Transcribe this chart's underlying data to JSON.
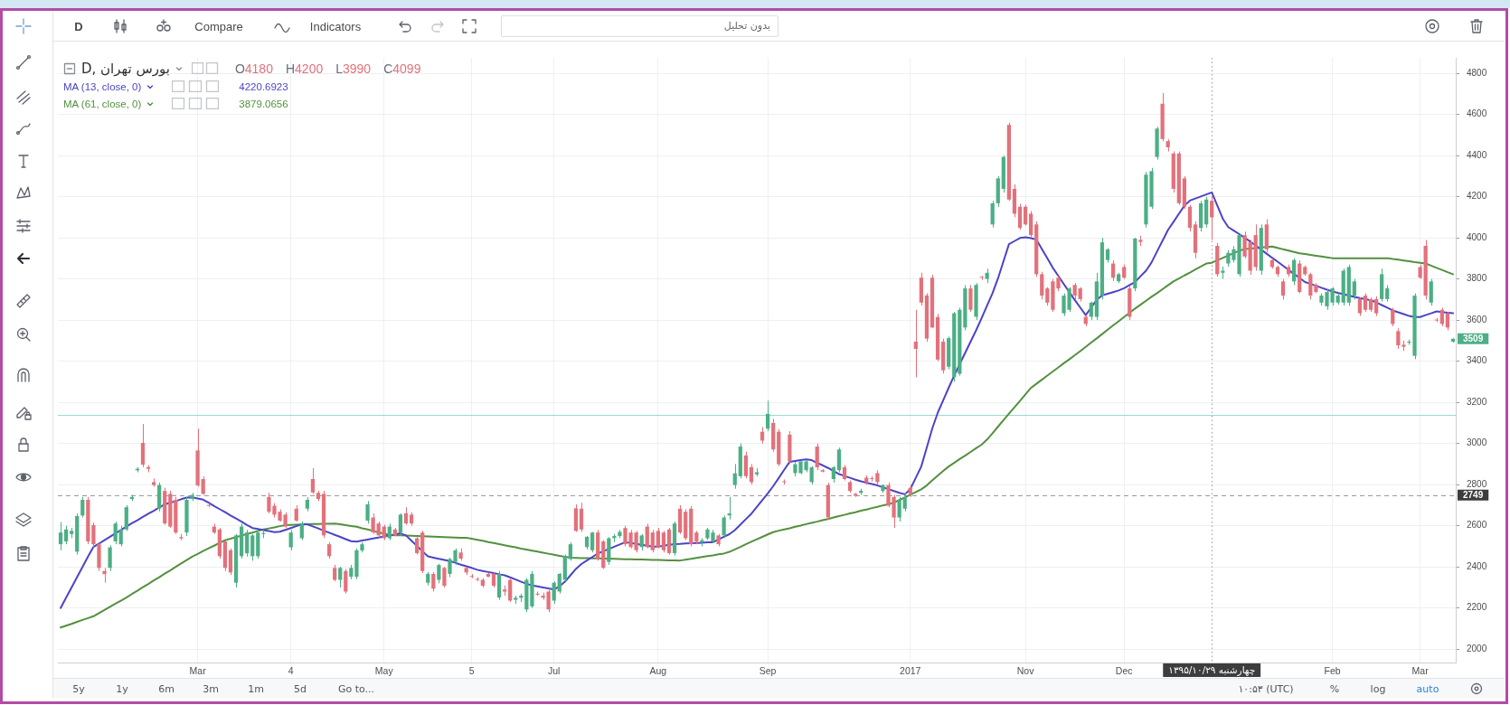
{
  "chart_data": {
    "type": "candlestick",
    "title": "D, بورس تهران",
    "categories": [
      null,
      null,
      null,
      null,
      null,
      null,
      null,
      null,
      null,
      null,
      null,
      null,
      null,
      null,
      null,
      null,
      null,
      null,
      null,
      null,
      null,
      null,
      null,
      null,
      null,
      "Mar",
      null,
      null,
      null,
      null,
      null,
      null,
      null,
      null,
      null,
      null,
      null,
      null,
      null,
      null,
      null,
      null,
      "4",
      null,
      null,
      null,
      null,
      null,
      null,
      null,
      null,
      null,
      null,
      null,
      null,
      null,
      null,
      null,
      null,
      "May",
      null,
      null,
      null,
      null,
      null,
      null,
      null,
      null,
      null,
      null,
      null,
      null,
      null,
      null,
      null,
      "5",
      null,
      null,
      null,
      null,
      null,
      null,
      null,
      null,
      null,
      null,
      null,
      null,
      null,
      null,
      "Jul",
      null,
      null,
      null,
      null,
      null,
      null,
      null,
      null,
      null,
      null,
      null,
      null,
      null,
      null,
      null,
      null,
      null,
      null,
      "Aug",
      null,
      null,
      null,
      null,
      null,
      null,
      null,
      null,
      null,
      null,
      null,
      null,
      null,
      null,
      null,
      null,
      null,
      null,
      null,
      "Sep",
      null,
      null,
      null,
      null,
      null,
      null,
      null,
      null,
      null,
      null,
      null,
      null,
      null,
      null,
      null,
      null,
      null,
      null,
      null,
      null,
      null,
      null,
      null,
      null,
      null,
      "2017",
      null,
      null,
      null,
      null,
      null,
      null,
      null,
      null,
      null,
      null,
      null,
      null,
      null,
      null,
      null,
      null,
      null,
      null,
      null,
      null,
      "Nov",
      null,
      null,
      null,
      null,
      null,
      null,
      null,
      null,
      null,
      null,
      null,
      null,
      null,
      null,
      null,
      null,
      null,
      "Dec",
      null,
      null,
      null,
      null,
      null,
      null,
      null,
      null,
      null,
      null,
      null,
      null,
      null,
      null,
      null,
      "چهارشنبه ۱۳۹۵/۱۰/۲۹",
      null,
      null,
      null,
      null,
      null,
      null,
      null,
      null,
      null,
      null,
      null,
      null,
      null,
      null,
      null,
      null,
      null,
      null,
      null,
      null,
      null,
      "Feb",
      null,
      null,
      null,
      null,
      null,
      null,
      null,
      null,
      null,
      null,
      null,
      null,
      null,
      null,
      null,
      "Mar",
      null,
      null,
      null,
      null,
      null,
      null
    ],
    "ohlc": [
      [
        2510,
        2618,
        2481,
        2567
      ],
      [
        2524,
        2600,
        2510,
        2582
      ],
      [
        2560,
        2590,
        2540,
        2575
      ],
      [
        2474,
        2660,
        2460,
        2647
      ],
      [
        2650,
        2740,
        2640,
        2726
      ],
      [
        2726,
        2740,
        2510,
        2524
      ],
      [
        2603,
        2615,
        2495,
        2510
      ],
      [
        2510,
        2520,
        2380,
        2395
      ],
      [
        2380,
        2395,
        2323,
        2365
      ],
      [
        2395,
        2505,
        2380,
        2495
      ],
      [
        2524,
        2620,
        2510,
        2611
      ],
      [
        2510,
        2600,
        2500,
        2582
      ],
      [
        2582,
        2700,
        2575,
        2690
      ],
      [
        2730,
        2750,
        2720,
        2740
      ],
      [
        2870,
        2885,
        2860,
        2877
      ],
      [
        3003,
        3095,
        2885,
        2897
      ],
      [
        2885,
        2895,
        2860,
        2877
      ],
      [
        2812,
        2830,
        2790,
        2798
      ],
      [
        2683,
        2810,
        2670,
        2798
      ],
      [
        2769,
        2785,
        2605,
        2611
      ],
      [
        2755,
        2770,
        2590,
        2596
      ],
      [
        2726,
        2740,
        2560,
        2567
      ],
      [
        2545,
        2560,
        2530,
        2539
      ],
      [
        2567,
        2740,
        2550,
        2726
      ],
      [
        2730,
        2760,
        2720,
        2750
      ],
      [
        2966,
        3072,
        2790,
        2796
      ],
      [
        2827,
        2840,
        2750,
        2755
      ],
      [
        2700,
        2710,
        2690,
        2697
      ],
      [
        2596,
        2610,
        2560,
        2567
      ],
      [
        2582,
        2590,
        2440,
        2452
      ],
      [
        2524,
        2530,
        2380,
        2395
      ],
      [
        2481,
        2490,
        2360,
        2373
      ],
      [
        2323,
        2560,
        2300,
        2553
      ],
      [
        2452,
        2610,
        2440,
        2596
      ],
      [
        2466,
        2580,
        2450,
        2567
      ],
      [
        2452,
        2560,
        2430,
        2553
      ],
      [
        2452,
        2580,
        2440,
        2567
      ],
      [
        2560,
        2580,
        2540,
        2565
      ],
      [
        2740,
        2760,
        2660,
        2668
      ],
      [
        2697,
        2710,
        2640,
        2654
      ],
      [
        2668,
        2680,
        2620,
        2625
      ],
      [
        2654,
        2665,
        2590,
        2596
      ],
      [
        2495,
        2580,
        2480,
        2567
      ],
      [
        2683,
        2700,
        2620,
        2625
      ],
      [
        2539,
        2620,
        2530,
        2611
      ],
      [
        2683,
        2740,
        2670,
        2726
      ],
      [
        2827,
        2880,
        2755,
        2762
      ],
      [
        2760,
        2770,
        2720,
        2730
      ],
      [
        2755,
        2770,
        2540,
        2553
      ],
      [
        2510,
        2520,
        2440,
        2452
      ],
      [
        2395,
        2410,
        2330,
        2337
      ],
      [
        2337,
        2400,
        2300,
        2395
      ],
      [
        2380,
        2390,
        2270,
        2280
      ],
      [
        2352,
        2410,
        2340,
        2395
      ],
      [
        2352,
        2490,
        2340,
        2481
      ],
      [
        2480,
        2520,
        2470,
        2510
      ],
      [
        2625,
        2720,
        2610,
        2704
      ],
      [
        2640,
        2660,
        2560,
        2567
      ],
      [
        2611,
        2620,
        2540,
        2553
      ],
      [
        2596,
        2605,
        2530,
        2539
      ],
      [
        2539,
        2610,
        2530,
        2596
      ],
      [
        2582,
        2590,
        2550,
        2553
      ],
      [
        2567,
        2660,
        2550,
        2654
      ],
      [
        2661,
        2690,
        2605,
        2611
      ],
      [
        2654,
        2665,
        2600,
        2611
      ],
      [
        2539,
        2550,
        2460,
        2467
      ],
      [
        2567,
        2575,
        2370,
        2380
      ],
      [
        2323,
        2375,
        2310,
        2366
      ],
      [
        2366,
        2375,
        2280,
        2294
      ],
      [
        2337,
        2415,
        2320,
        2409
      ],
      [
        2395,
        2400,
        2300,
        2308
      ],
      [
        2366,
        2445,
        2350,
        2438
      ],
      [
        2424,
        2490,
        2410,
        2481
      ],
      [
        2470,
        2490,
        2430,
        2440
      ],
      [
        2395,
        2400,
        2360,
        2373
      ],
      [
        2355,
        2365,
        2345,
        2351
      ],
      [
        2340,
        2350,
        2330,
        2337
      ],
      [
        2337,
        2345,
        2300,
        2308
      ],
      [
        2366,
        2370,
        2350,
        2352
      ],
      [
        2366,
        2375,
        2300,
        2308
      ],
      [
        2251,
        2380,
        2240,
        2366
      ],
      [
        2290,
        2310,
        2260,
        2280
      ],
      [
        2337,
        2345,
        2230,
        2236
      ],
      [
        2240,
        2260,
        2220,
        2250
      ],
      [
        2250,
        2270,
        2230,
        2260
      ],
      [
        2193,
        2345,
        2180,
        2337
      ],
      [
        2208,
        2380,
        2200,
        2366
      ],
      [
        2270,
        2280,
        2260,
        2265
      ],
      [
        2260,
        2275,
        2240,
        2250
      ],
      [
        2280,
        2295,
        2180,
        2193
      ],
      [
        2236,
        2330,
        2220,
        2323
      ],
      [
        2280,
        2370,
        2270,
        2366
      ],
      [
        2337,
        2460,
        2330,
        2452
      ],
      [
        2438,
        2520,
        2430,
        2510
      ],
      [
        2685,
        2704,
        2570,
        2575
      ],
      [
        2683,
        2712,
        2570,
        2582
      ],
      [
        2496,
        2550,
        2485,
        2546
      ],
      [
        2481,
        2570,
        2470,
        2567
      ],
      [
        2567,
        2580,
        2430,
        2438
      ],
      [
        2524,
        2530,
        2390,
        2395
      ],
      [
        2424,
        2545,
        2410,
        2539
      ],
      [
        2540,
        2560,
        2520,
        2550
      ],
      [
        2550,
        2580,
        2540,
        2570
      ],
      [
        2589,
        2600,
        2500,
        2510
      ],
      [
        2567,
        2580,
        2490,
        2496
      ],
      [
        2567,
        2575,
        2470,
        2481
      ],
      [
        2496,
        2560,
        2480,
        2553
      ],
      [
        2596,
        2610,
        2490,
        2496
      ],
      [
        2567,
        2580,
        2470,
        2481
      ],
      [
        2575,
        2590,
        2490,
        2496
      ],
      [
        2567,
        2575,
        2470,
        2481
      ],
      [
        2582,
        2590,
        2460,
        2467
      ],
      [
        2467,
        2620,
        2455,
        2611
      ],
      [
        2683,
        2700,
        2560,
        2567
      ],
      [
        2668,
        2680,
        2530,
        2539
      ],
      [
        2683,
        2695,
        2500,
        2510
      ],
      [
        2567,
        2575,
        2510,
        2524
      ],
      [
        2520,
        2540,
        2500,
        2530
      ],
      [
        2539,
        2590,
        2530,
        2582
      ],
      [
        2524,
        2580,
        2515,
        2567
      ],
      [
        2553,
        2560,
        2500,
        2510
      ],
      [
        2553,
        2650,
        2540,
        2640
      ],
      [
        2650,
        2740,
        2630,
        2660
      ],
      [
        2798,
        2900,
        2780,
        2855
      ],
      [
        2841,
        3000,
        2830,
        2985
      ],
      [
        2942,
        2960,
        2830,
        2841
      ],
      [
        2885,
        2900,
        2800,
        2812
      ],
      [
        2850,
        2880,
        2840,
        2860
      ],
      [
        3057,
        3080,
        3000,
        3014
      ],
      [
        3072,
        3208,
        3060,
        3144
      ],
      [
        3100,
        3120,
        2960,
        2971
      ],
      [
        3057,
        3070,
        2890,
        2899
      ],
      [
        2815,
        2825,
        2800,
        2812
      ],
      [
        3043,
        3060,
        2900,
        2913
      ],
      [
        2856,
        2910,
        2840,
        2899
      ],
      [
        2856,
        2920,
        2850,
        2913
      ],
      [
        2870,
        2920,
        2860,
        2913
      ],
      [
        2812,
        2890,
        2800,
        2884
      ],
      [
        2985,
        3000,
        2870,
        2884
      ],
      [
        2870,
        2875,
        2860,
        2863
      ],
      [
        2798,
        2810,
        2630,
        2640
      ],
      [
        2827,
        2890,
        2810,
        2884
      ],
      [
        2870,
        2980,
        2860,
        2971
      ],
      [
        2884,
        2895,
        2820,
        2827
      ],
      [
        2812,
        2820,
        2760,
        2769
      ],
      [
        2755,
        2760,
        2740,
        2746
      ],
      [
        2760,
        2780,
        2750,
        2770
      ],
      [
        2834,
        2845,
        2800,
        2812
      ],
      [
        2830,
        2840,
        2815,
        2827
      ],
      [
        2856,
        2870,
        2800,
        2812
      ],
      [
        2769,
        2800,
        2760,
        2798
      ],
      [
        2798,
        2810,
        2690,
        2697
      ],
      [
        2740,
        2750,
        2589,
        2640
      ],
      [
        2640,
        2740,
        2620,
        2726
      ],
      [
        2683,
        2760,
        2670,
        2740
      ],
      [
        2784,
        2800,
        2740,
        2755
      ],
      [
        3495,
        3650,
        3322,
        3460
      ],
      [
        3806,
        3830,
        3670,
        3685
      ],
      [
        3720,
        3730,
        3495,
        3510
      ],
      [
        3806,
        3820,
        3560,
        3564
      ],
      [
        3615,
        3630,
        3400,
        3408
      ],
      [
        3495,
        3510,
        3340,
        3356
      ],
      [
        3373,
        3520,
        3360,
        3512
      ],
      [
        3322,
        3640,
        3300,
        3633
      ],
      [
        3339,
        3660,
        3330,
        3650
      ],
      [
        3564,
        3770,
        3550,
        3754
      ],
      [
        3754,
        3770,
        3640,
        3650
      ],
      [
        3616,
        3780,
        3600,
        3771
      ],
      [
        3810,
        3815,
        3795,
        3806
      ],
      [
        3800,
        3850,
        3780,
        3830
      ],
      [
        4065,
        4180,
        4050,
        4168
      ],
      [
        4168,
        4300,
        4150,
        4289
      ],
      [
        4238,
        4400,
        4220,
        4393
      ],
      [
        4549,
        4560,
        4180,
        4186
      ],
      [
        4238,
        4260,
        4100,
        4117
      ],
      [
        4151,
        4165,
        4040,
        4048
      ],
      [
        4151,
        4160,
        4060,
        4065
      ],
      [
        4117,
        4130,
        4000,
        4013
      ],
      [
        4065,
        4080,
        3810,
        3823
      ],
      [
        3823,
        3835,
        3700,
        3719
      ],
      [
        3754,
        3760,
        3670,
        3685
      ],
      [
        3788,
        3800,
        3640,
        3650
      ],
      [
        3806,
        3815,
        3740,
        3754
      ],
      [
        3633,
        3730,
        3620,
        3719
      ],
      [
        3650,
        3760,
        3640,
        3754
      ],
      [
        3771,
        3780,
        3700,
        3719
      ],
      [
        3754,
        3760,
        3690,
        3702
      ],
      [
        3616,
        3625,
        3570,
        3581
      ],
      [
        3616,
        3690,
        3600,
        3685
      ],
      [
        3616,
        3830,
        3600,
        3788
      ],
      [
        3719,
        4000,
        3700,
        3978
      ],
      [
        3892,
        3950,
        3880,
        3944
      ],
      [
        3875,
        3890,
        3790,
        3806
      ],
      [
        3789,
        3830,
        3780,
        3823
      ],
      [
        3858,
        3870,
        3800,
        3806
      ],
      [
        3754,
        3765,
        3600,
        3616
      ],
      [
        3754,
        4000,
        3740,
        3996
      ],
      [
        3990,
        4010,
        3960,
        3980
      ],
      [
        4065,
        4320,
        4050,
        4307
      ],
      [
        4151,
        4340,
        4140,
        4324
      ],
      [
        4393,
        4540,
        4380,
        4531
      ],
      [
        4652,
        4704,
        4470,
        4480
      ],
      [
        4470,
        4480,
        4420,
        4440
      ],
      [
        4410,
        4420,
        4220,
        4238
      ],
      [
        4410,
        4420,
        4160,
        4168
      ],
      [
        4289,
        4300,
        4140,
        4151
      ],
      [
        4151,
        4160,
        4030,
        4048
      ],
      [
        4065,
        4080,
        3900,
        3927
      ],
      [
        4048,
        4180,
        4030,
        4168
      ],
      [
        4065,
        4200,
        4050,
        4186
      ],
      [
        4180,
        4200,
        3990,
        4099
      ],
      [
        3961,
        3975,
        3810,
        3823
      ],
      [
        3830,
        3860,
        3800,
        3840
      ],
      [
        3875,
        3940,
        3860,
        3927
      ],
      [
        3892,
        3960,
        3880,
        3944
      ],
      [
        3823,
        4020,
        3810,
        4013
      ],
      [
        4013,
        4030,
        3900,
        3909
      ],
      [
        3978,
        3990,
        3820,
        3840
      ],
      [
        4013,
        4065,
        3840,
        3858
      ],
      [
        3840,
        4065,
        3820,
        4048
      ],
      [
        4065,
        4090,
        3930,
        3944
      ],
      [
        3892,
        3900,
        3850,
        3858
      ],
      [
        3858,
        3865,
        3810,
        3823
      ],
      [
        3788,
        3800,
        3700,
        3719
      ],
      [
        3858,
        3870,
        3810,
        3823
      ],
      [
        3788,
        3900,
        3770,
        3892
      ],
      [
        3875,
        3890,
        3730,
        3737
      ],
      [
        3858,
        3865,
        3815,
        3823
      ],
      [
        3823,
        3830,
        3700,
        3719
      ],
      [
        3771,
        3780,
        3730,
        3737
      ],
      [
        3685,
        3730,
        3670,
        3719
      ],
      [
        3667,
        3750,
        3650,
        3737
      ],
      [
        3685,
        3760,
        3670,
        3754
      ],
      [
        3685,
        3730,
        3675,
        3719
      ],
      [
        3685,
        3850,
        3670,
        3840
      ],
      [
        3685,
        3870,
        3670,
        3858
      ],
      [
        3719,
        3800,
        3700,
        3788
      ],
      [
        3702,
        3710,
        3620,
        3633
      ],
      [
        3719,
        3730,
        3640,
        3650
      ],
      [
        3702,
        3710,
        3640,
        3650
      ],
      [
        3702,
        3715,
        3620,
        3633
      ],
      [
        3702,
        3850,
        3690,
        3823
      ],
      [
        3702,
        3770,
        3690,
        3754
      ],
      [
        3650,
        3660,
        3570,
        3581
      ],
      [
        3546,
        3560,
        3460,
        3477
      ],
      [
        3480,
        3500,
        3450,
        3470
      ],
      [
        3490,
        3505,
        3480,
        3495
      ],
      [
        3426,
        3730,
        3410,
        3719
      ],
      [
        3858,
        3870,
        3800,
        3806
      ],
      [
        3961,
        3990,
        3700,
        3719
      ],
      [
        3685,
        3800,
        3670,
        3788
      ],
      [
        3600,
        3610,
        3590,
        3598
      ],
      [
        3650,
        3660,
        3570,
        3581
      ],
      [
        3633,
        3640,
        3550,
        3564
      ],
      [
        3495,
        3512,
        3490,
        3509
      ]
    ],
    "colors": [
      "#4caf85",
      "#4caf85",
      "#4caf85",
      "#4caf85",
      "#4caf85",
      "#e3717b",
      "#e3717b",
      "#e3717b",
      "#e3717b",
      "#4caf85",
      "#4caf85",
      "#4caf85",
      "#4caf85",
      "#4caf85",
      "#4caf85",
      "#e3717b",
      "#e3717b",
      "#e3717b",
      "#4caf85",
      "#e3717b",
      "#e3717b",
      "#e3717b",
      "#e3717b",
      "#4caf85",
      "#4caf85",
      "#e3717b",
      "#e3717b",
      "#e3717b",
      "#e3717b",
      "#e3717b",
      "#e3717b",
      "#e3717b",
      "#4caf85",
      "#4caf85",
      "#4caf85",
      "#4caf85",
      "#4caf85",
      "#4caf85",
      "#e3717b",
      "#e3717b",
      "#e3717b",
      "#e3717b",
      "#4caf85",
      "#e3717b",
      "#4caf85",
      "#4caf85",
      "#e3717b",
      "#e3717b",
      "#e3717b",
      "#e3717b",
      "#e3717b",
      "#4caf85",
      "#e3717b",
      "#4caf85",
      "#4caf85",
      "#4caf85",
      "#4caf85",
      "#e3717b",
      "#e3717b",
      "#e3717b",
      "#4caf85",
      "#e3717b",
      "#4caf85",
      "#e3717b",
      "#e3717b",
      "#e3717b",
      "#e3717b",
      "#4caf85",
      "#e3717b",
      "#4caf85",
      "#e3717b",
      "#4caf85",
      "#4caf85",
      "#e3717b",
      "#e3717b",
      "#e3717b",
      "#e3717b",
      "#e3717b",
      "#e3717b",
      "#e3717b",
      "#4caf85",
      "#e3717b",
      "#e3717b",
      "#4caf85",
      "#4caf85",
      "#4caf85",
      "#4caf85",
      "#e3717b",
      "#e3717b",
      "#e3717b",
      "#4caf85",
      "#4caf85",
      "#4caf85",
      "#4caf85",
      "#e3717b",
      "#e3717b",
      "#4caf85",
      "#4caf85",
      "#e3717b",
      "#e3717b",
      "#4caf85",
      "#4caf85",
      "#4caf85",
      "#e3717b",
      "#e3717b",
      "#e3717b",
      "#4caf85",
      "#e3717b",
      "#e3717b",
      "#e3717b",
      "#e3717b",
      "#e3717b",
      "#4caf85",
      "#e3717b",
      "#e3717b",
      "#e3717b",
      "#e3717b",
      "#4caf85",
      "#4caf85",
      "#4caf85",
      "#e3717b",
      "#4caf85",
      "#4caf85",
      "#4caf85",
      "#4caf85",
      "#e3717b",
      "#e3717b",
      "#4caf85",
      "#e3717b",
      "#4caf85",
      "#e3717b",
      "#e3717b",
      "#e3717b",
      "#e3717b",
      "#4caf85",
      "#4caf85",
      "#4caf85",
      "#4caf85",
      "#e3717b",
      "#e3717b",
      "#e3717b",
      "#4caf85",
      "#4caf85",
      "#e3717b",
      "#e3717b",
      "#e3717b",
      "#4caf85",
      "#e3717b",
      "#e3717b",
      "#e3717b",
      "#4caf85",
      "#e3717b",
      "#e3717b",
      "#4caf85",
      "#4caf85",
      "#e3717b",
      "#e3717b",
      "#e3717b",
      "#e3717b",
      "#e3717b",
      "#e3717b",
      "#e3717b",
      "#4caf85",
      "#4caf85",
      "#4caf85",
      "#4caf85",
      "#e3717b",
      "#4caf85",
      "#e3717b",
      "#4caf85",
      "#4caf85",
      "#4caf85",
      "#4caf85",
      "#e3717b",
      "#e3717b",
      "#e3717b",
      "#e3717b",
      "#e3717b",
      "#e3717b",
      "#e3717b",
      "#e3717b",
      "#e3717b",
      "#e3717b",
      "#4caf85",
      "#4caf85",
      "#e3717b",
      "#e3717b",
      "#e3717b",
      "#4caf85",
      "#4caf85",
      "#4caf85",
      "#4caf85",
      "#e3717b",
      "#4caf85",
      "#e3717b",
      "#e3717b",
      "#4caf85",
      "#e3717b",
      "#4caf85",
      "#4caf85",
      "#4caf85",
      "#e3717b",
      "#e3717b",
      "#e3717b",
      "#e3717b",
      "#e3717b",
      "#e3717b",
      "#e3717b",
      "#4caf85",
      "#4caf85",
      "#e3717b",
      "#e3717b",
      "#4caf85",
      "#4caf85",
      "#4caf85",
      "#4caf85",
      "#e3717b",
      "#e3717b",
      "#e3717b",
      "#4caf85",
      "#e3717b",
      "#e3717b",
      "#e3717b",
      "#e3717b",
      "#e3717b",
      "#4caf85",
      "#e3717b",
      "#e3717b",
      "#e3717b",
      "#e3717b",
      "#4caf85",
      "#4caf85",
      "#4caf85",
      "#4caf85",
      "#4caf85",
      "#4caf85",
      "#4caf85",
      "#e3717b",
      "#e3717b",
      "#e3717b",
      "#e3717b",
      "#4caf85",
      "#4caf85",
      "#e3717b",
      "#e3717b",
      "#e3717b",
      "#4caf85",
      "#4caf85",
      "#e3717b",
      "#e3717b",
      "#4caf85",
      "#e3717b",
      "#e3717b",
      "#e3717b",
      "#4caf85"
    ],
    "series": [
      {
        "name": "MA (13, close, 0)",
        "type": "line",
        "color": "#4b44c6",
        "values": [
          2200,
          2250,
          2300,
          2350,
          2400,
          2450,
          2497,
          2513,
          2530,
          2546,
          2563,
          2579,
          2596,
          2612,
          2627,
          2643,
          2658,
          2673,
          2689,
          2704,
          2712,
          2720,
          2729,
          2737,
          2738,
          2733,
          2727,
          2712,
          2696,
          2681,
          2666,
          2650,
          2635,
          2620,
          2604,
          2589,
          2584,
          2579,
          2574,
          2569,
          2571,
          2580,
          2589,
          2598,
          2607,
          2607,
          2597,
          2587,
          2576,
          2566,
          2556,
          2546,
          2535,
          2525,
          2523,
          2528,
          2533,
          2538,
          2543,
          2548,
          2553,
          2558,
          2563,
          2553,
          2527,
          2502,
          2476,
          2451,
          2445,
          2439,
          2434,
          2428,
          2420,
          2411,
          2403,
          2395,
          2386,
          2380,
          2375,
          2370,
          2364,
          2359,
          2349,
          2339,
          2328,
          2318,
          2310,
          2305,
          2300,
          2295,
          2290,
          2305,
          2328,
          2359,
          2390,
          2414,
          2431,
          2448,
          2465,
          2476,
          2487,
          2498,
          2509,
          2520,
          2516,
          2512,
          2507,
          2503,
          2499,
          2499,
          2503,
          2507,
          2511,
          2512,
          2514,
          2515,
          2516,
          2517,
          2519,
          2520,
          2533,
          2546,
          2559,
          2579,
          2605,
          2632,
          2658,
          2691,
          2724,
          2757,
          2793,
          2832,
          2872,
          2911,
          2915,
          2919,
          2923,
          2919,
          2906,
          2894,
          2881,
          2866,
          2851,
          2842,
          2833,
          2824,
          2816,
          2809,
          2803,
          2796,
          2787,
          2778,
          2769,
          2760,
          2753,
          2778,
          2833,
          2888,
          2980,
          3072,
          3149,
          3210,
          3271,
          3330,
          3385,
          3440,
          3495,
          3550,
          3609,
          3670,
          3731,
          3803,
          3886,
          3969,
          3984,
          3999,
          4003,
          3998,
          3992,
          3946,
          3900,
          3854,
          3815,
          3775,
          3736,
          3698,
          3661,
          3624,
          3661,
          3698,
          3720,
          3728,
          3736,
          3744,
          3755,
          3770,
          3785,
          3813,
          3840,
          3880,
          3933,
          3985,
          4038,
          4077,
          4117,
          4156,
          4181,
          4191,
          4201,
          4211,
          4221,
          4157,
          4093,
          4052,
          4035,
          4018,
          4000,
          3982,
          3962,
          3943,
          3923,
          3903,
          3884,
          3864,
          3844,
          3824,
          3805,
          3785,
          3776,
          3767,
          3757,
          3748,
          3739,
          3732,
          3726,
          3719,
          3713,
          3707,
          3702,
          3696,
          3686,
          3673,
          3660,
          3647,
          3638,
          3629,
          3620,
          3615,
          3615,
          3624,
          3633,
          3642,
          3639,
          3636,
          3633
        ]
      },
      {
        "name": "MA (61, close, 0)",
        "type": "line",
        "color": "#53903f",
        "values": [
          2105,
          2114,
          2123,
          2133,
          2142,
          2151,
          2160,
          2175,
          2190,
          2206,
          2221,
          2236,
          2251,
          2268,
          2284,
          2301,
          2317,
          2334,
          2350,
          2367,
          2383,
          2400,
          2417,
          2433,
          2450,
          2463,
          2477,
          2490,
          2503,
          2517,
          2530,
          2537,
          2545,
          2552,
          2560,
          2567,
          2575,
          2582,
          2587,
          2592,
          2598,
          2603,
          2604,
          2605,
          2606,
          2607,
          2608,
          2609,
          2610,
          2610,
          2611,
          2607,
          2603,
          2599,
          2595,
          2588,
          2582,
          2575,
          2568,
          2562,
          2555,
          2554,
          2553,
          2552,
          2551,
          2550,
          2549,
          2548,
          2547,
          2546,
          2545,
          2544,
          2543,
          2542,
          2541,
          2537,
          2532,
          2527,
          2521,
          2516,
          2511,
          2505,
          2500,
          2495,
          2489,
          2484,
          2479,
          2474,
          2469,
          2464,
          2459,
          2454,
          2449,
          2445,
          2444,
          2443,
          2443,
          2442,
          2441,
          2440,
          2440,
          2439,
          2438,
          2437,
          2437,
          2436,
          2436,
          2435,
          2434,
          2434,
          2433,
          2432,
          2432,
          2431,
          2435,
          2439,
          2444,
          2448,
          2452,
          2456,
          2461,
          2465,
          2473,
          2485,
          2497,
          2510,
          2522,
          2534,
          2546,
          2558,
          2569,
          2576,
          2582,
          2588,
          2595,
          2601,
          2608,
          2614,
          2620,
          2627,
          2633,
          2640,
          2647,
          2653,
          2660,
          2666,
          2673,
          2679,
          2686,
          2692,
          2699,
          2705,
          2712,
          2725,
          2738,
          2751,
          2764,
          2777,
          2796,
          2820,
          2844,
          2867,
          2888,
          2906,
          2924,
          2941,
          2959,
          2977,
          2994,
          3019,
          3050,
          3082,
          3113,
          3145,
          3176,
          3207,
          3239,
          3270,
          3290,
          3310,
          3330,
          3350,
          3370,
          3390,
          3409,
          3429,
          3449,
          3470,
          3491,
          3511,
          3532,
          3553,
          3574,
          3594,
          3615,
          3636,
          3656,
          3675,
          3694,
          3713,
          3731,
          3750,
          3769,
          3788,
          3802,
          3817,
          3831,
          3846,
          3860,
          3875,
          3879,
          3891,
          3902,
          3914,
          3925,
          3937,
          3945,
          3948,
          3950,
          3953,
          3955,
          3958,
          3951,
          3944,
          3938,
          3931,
          3925,
          3921,
          3917,
          3913,
          3909,
          3905,
          3901,
          3901,
          3901,
          3901,
          3901,
          3901,
          3901,
          3901,
          3901,
          3901,
          3901,
          3897,
          3894,
          3890,
          3886,
          3882,
          3879,
          3875,
          3865,
          3854,
          3844,
          3833,
          3823
        ]
      }
    ],
    "ylim": [
      1935,
      4875
    ],
    "yticks": [
      2000,
      2200,
      2400,
      2600,
      2800,
      3000,
      3200,
      3400,
      3600,
      3800,
      4000,
      4200,
      4400,
      4600,
      4800
    ],
    "grid": true,
    "legend": "top left",
    "ref_lines": [
      {
        "axis": "y",
        "value": 3140,
        "color": "#9fd6d2"
      },
      {
        "axis": "y",
        "value": 2749,
        "label": "2749",
        "line_style": "dashed",
        "color": "#9a9a9a"
      },
      {
        "axis": "x",
        "value": "چهارشنبه ۱۳۹۵/۱۰/۲۹",
        "line_style": "dotted",
        "color": "#9a9a9a"
      }
    ],
    "annotations": [
      "D",
      "Compare",
      "Indicators",
      "بدون تحلیل",
      "O4180",
      "H4200",
      "L3990",
      "C4099",
      "4220.6923",
      "3879.0656",
      "5y",
      "1y",
      "6m",
      "3m",
      "1m",
      "5d",
      "Go to...",
      "۱۰:۵۳ (UTC)",
      "%",
      "log",
      "auto",
      {
        "text": "3509",
        "y": 3509
      }
    ]
  }
}
